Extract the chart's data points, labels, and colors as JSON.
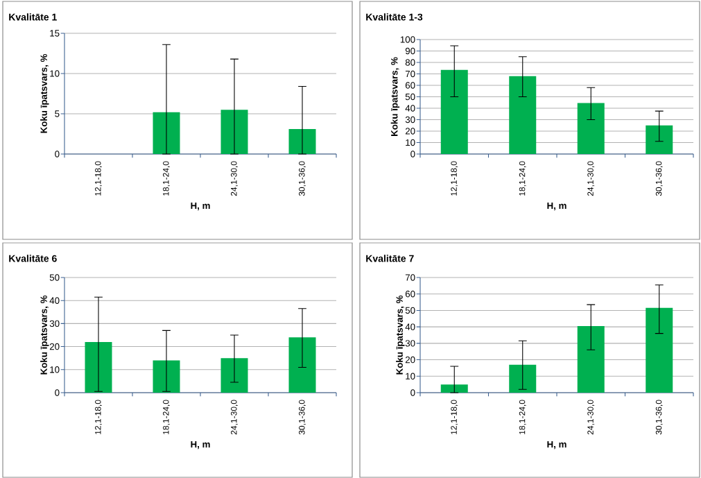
{
  "chart_data": [
    {
      "type": "bar",
      "title": "Kvalitāte 1",
      "xlabel": "H, m",
      "ylabel": "Koku īpatsvars, %",
      "categories": [
        "12,1-18,0",
        "18,1-24,0",
        "24,1-30,0",
        "30,1-36,0"
      ],
      "values": [
        0,
        5.2,
        5.5,
        3.1
      ],
      "errors": [
        null,
        [
          0,
          13.6
        ],
        [
          0,
          11.8
        ],
        [
          0,
          8.4
        ]
      ],
      "color": "#00b050",
      "ylim": [
        0,
        15
      ],
      "yticks": [
        0,
        5,
        10,
        15
      ],
      "grid": "y"
    },
    {
      "type": "bar",
      "title": "Kvalitāte 1-3",
      "xlabel": "H, m",
      "ylabel": "Koku īpatsvars, %",
      "categories": [
        "12,1-18,0",
        "18,1-24,0",
        "24,1-30,0",
        "30,1-36,0"
      ],
      "values": [
        73.5,
        68,
        44.5,
        25
      ],
      "errors": [
        [
          50,
          94.5
        ],
        [
          50,
          85
        ],
        [
          30,
          58
        ],
        [
          11,
          37.5
        ]
      ],
      "color": "#00b050",
      "ylim": [
        0,
        100
      ],
      "yticks": [
        0,
        10,
        20,
        30,
        40,
        50,
        60,
        70,
        80,
        90,
        100
      ],
      "grid": "y"
    },
    {
      "type": "bar",
      "title": "Kvalitāte 6",
      "xlabel": "H, m",
      "ylabel": "Koku īpatsvars, %",
      "categories": [
        "12,1-18,0",
        "18,1-24,0",
        "24,1-30,0",
        "30,1-36,0"
      ],
      "values": [
        22,
        14,
        15,
        24
      ],
      "errors": [
        [
          0.5,
          41.5
        ],
        [
          0.5,
          27
        ],
        [
          4.5,
          25
        ],
        [
          11,
          36.5
        ]
      ],
      "color": "#00b050",
      "ylim": [
        0,
        50
      ],
      "yticks": [
        0,
        10,
        20,
        30,
        40,
        50
      ],
      "grid": "y"
    },
    {
      "type": "bar",
      "title": "Kvalitāte 7",
      "xlabel": "H, m",
      "ylabel": "Koku īpatsvars, %",
      "categories": [
        "12,1-18,0",
        "18,1-24,0",
        "24,1-30,0",
        "30,1-36,0"
      ],
      "values": [
        5,
        17,
        40.5,
        51.5
      ],
      "errors": [
        [
          0,
          16
        ],
        [
          2,
          31.5
        ],
        [
          26,
          53.5
        ],
        [
          36,
          65.5
        ]
      ],
      "color": "#00b050",
      "ylim": [
        0,
        70
      ],
      "yticks": [
        0,
        10,
        20,
        30,
        40,
        50,
        60,
        70
      ],
      "grid": "y"
    }
  ]
}
